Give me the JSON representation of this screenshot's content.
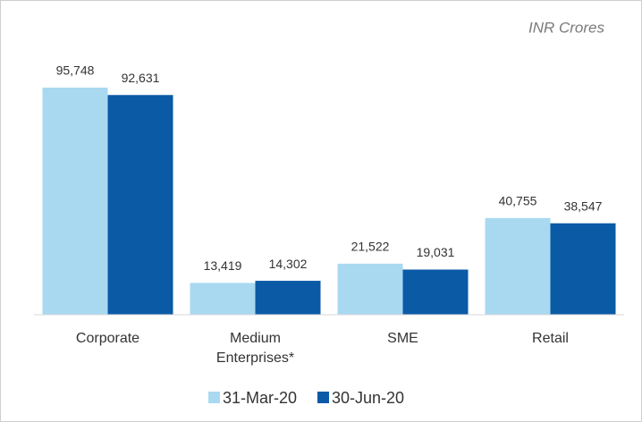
{
  "chart_data": {
    "type": "bar",
    "annotation": "INR Crores",
    "categories": [
      "Corporate",
      "Medium Enterprises*",
      "SME",
      "Retail"
    ],
    "series": [
      {
        "name": "31-Mar-20",
        "color": "#a9d9f1",
        "values": [
          95748,
          13419,
          21522,
          40755
        ],
        "value_labels": [
          "95,748",
          "13,419",
          "21,522",
          "40,755"
        ]
      },
      {
        "name": "30-Jun-20",
        "color": "#0b5aa6",
        "values": [
          92631,
          14302,
          19031,
          38547
        ],
        "value_labels": [
          "92,631",
          "14,302",
          "19,031",
          "38,547"
        ]
      }
    ],
    "legend": "bottom"
  }
}
